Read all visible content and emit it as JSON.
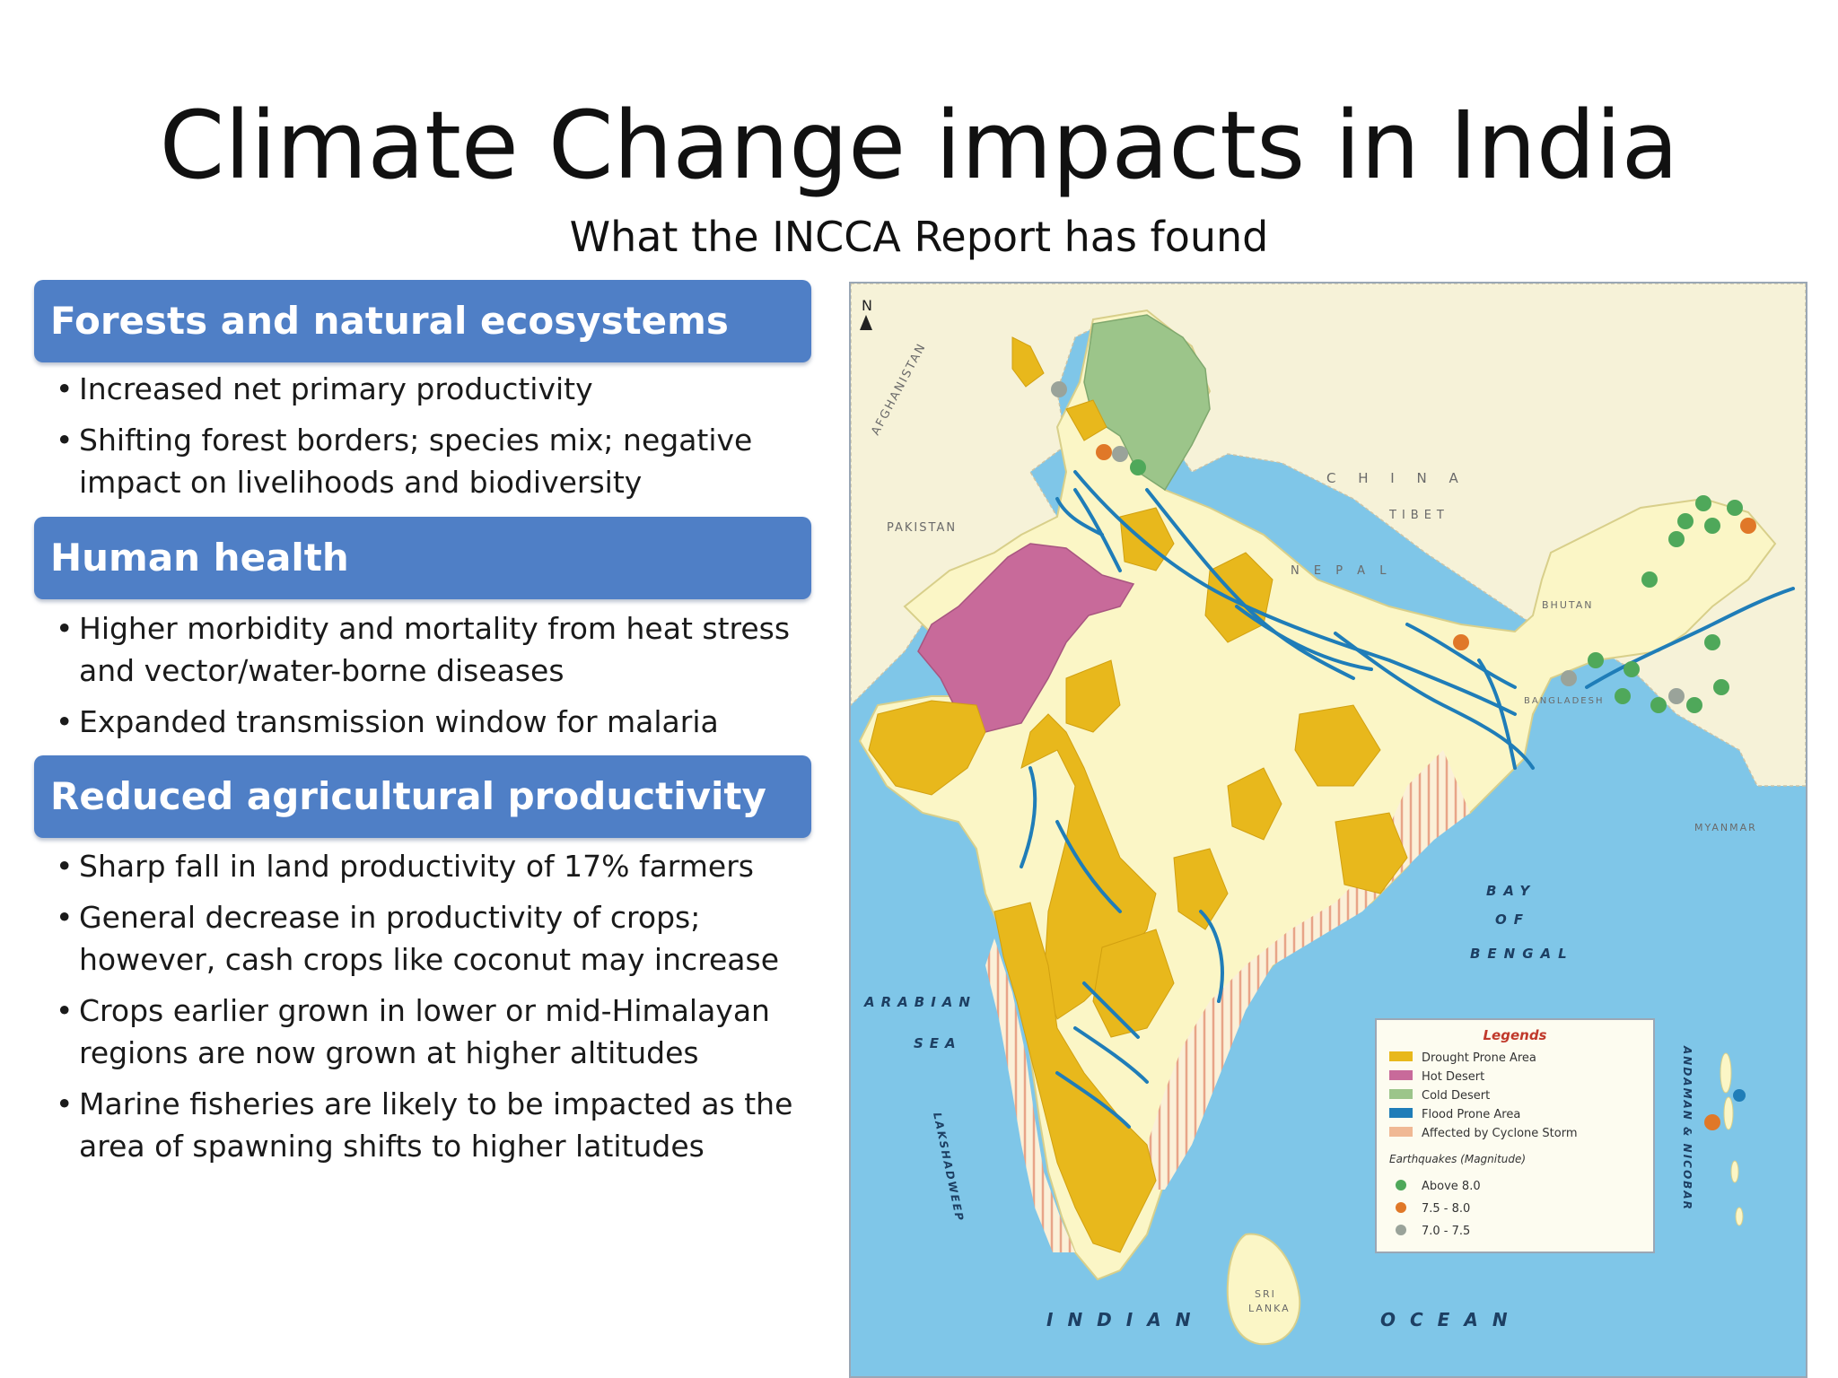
{
  "slide": {
    "title": "Climate Change impacts in India",
    "subtitle": "What the INCCA Report has found"
  },
  "sections": [
    {
      "header": "Forests and natural ecosystems",
      "bullets": [
        "Increased net primary productivity",
        "Shifting forest borders; species mix; negative impact on livelihoods and biodiversity"
      ]
    },
    {
      "header": "Human health",
      "bullets": [
        "Higher morbidity and mortality from heat stress and vector/water-borne diseases",
        "Expanded transmission window for malaria"
      ]
    },
    {
      "header": "Reduced agricultural productivity",
      "bullets": [
        "Sharp fall in land productivity of 17% farmers",
        "General decrease in productivity of crops; however, cash crops like coconut may increase",
        "Crops earlier grown in lower or mid-Himalayan regions are now grown at higher altitudes",
        "Marine fisheries are likely to be impacted as the area of spawning shifts to higher latitudes"
      ]
    }
  ],
  "map": {
    "north_label": "N",
    "country_labels": {
      "afghanistan": "AFGHANISTAN",
      "pakistan": "PAKISTAN",
      "china": "C H I N A",
      "tibet": "TIBET",
      "nepal": "N E P A L",
      "bhutan": "BHUTAN",
      "bangladesh": "BANGLADESH",
      "myanmar": "MYANMAR",
      "sri_lanka_1": "SRI",
      "sri_lanka_2": "LANKA"
    },
    "sea_labels": {
      "arabian_1": "ARABIAN",
      "arabian_2": "SEA",
      "bay_1": "BAY",
      "bay_2": "OF",
      "bay_3": "BENGAL",
      "indian": "INDIAN",
      "ocean": "OCEAN",
      "lakshadweep": "LAKSHADWEEP",
      "andaman": "ANDAMAN & NICOBAR"
    },
    "legend": {
      "title": "Legends",
      "items": [
        {
          "label": "Drought Prone Area",
          "color": "#e8b81c"
        },
        {
          "label": "Hot Desert",
          "color": "#c86a9a"
        },
        {
          "label": "Cold Desert",
          "color": "#9cc58a"
        },
        {
          "label": "Flood Prone Area",
          "color": "#1f7db8"
        },
        {
          "label": "Affected by Cyclone Storm",
          "color": "#f0b894"
        }
      ],
      "quake_title": "Earthquakes (Magnitude)",
      "quakes": [
        {
          "label": "Above 8.0",
          "color": "#4fa85a"
        },
        {
          "label": "7.5 - 8.0",
          "color": "#e07828"
        },
        {
          "label": "7.0 - 7.5",
          "color": "#9aa39a"
        }
      ]
    },
    "colors": {
      "sea": "#7fc6e8",
      "land": "#fbf6c6",
      "neighbor": "#f6f2d8",
      "drought": "#e8b81c",
      "hot_desert": "#c86a9a",
      "cold_desert": "#9cc58a",
      "flood": "#1f7db8",
      "cyclone": "#f0b894"
    }
  }
}
